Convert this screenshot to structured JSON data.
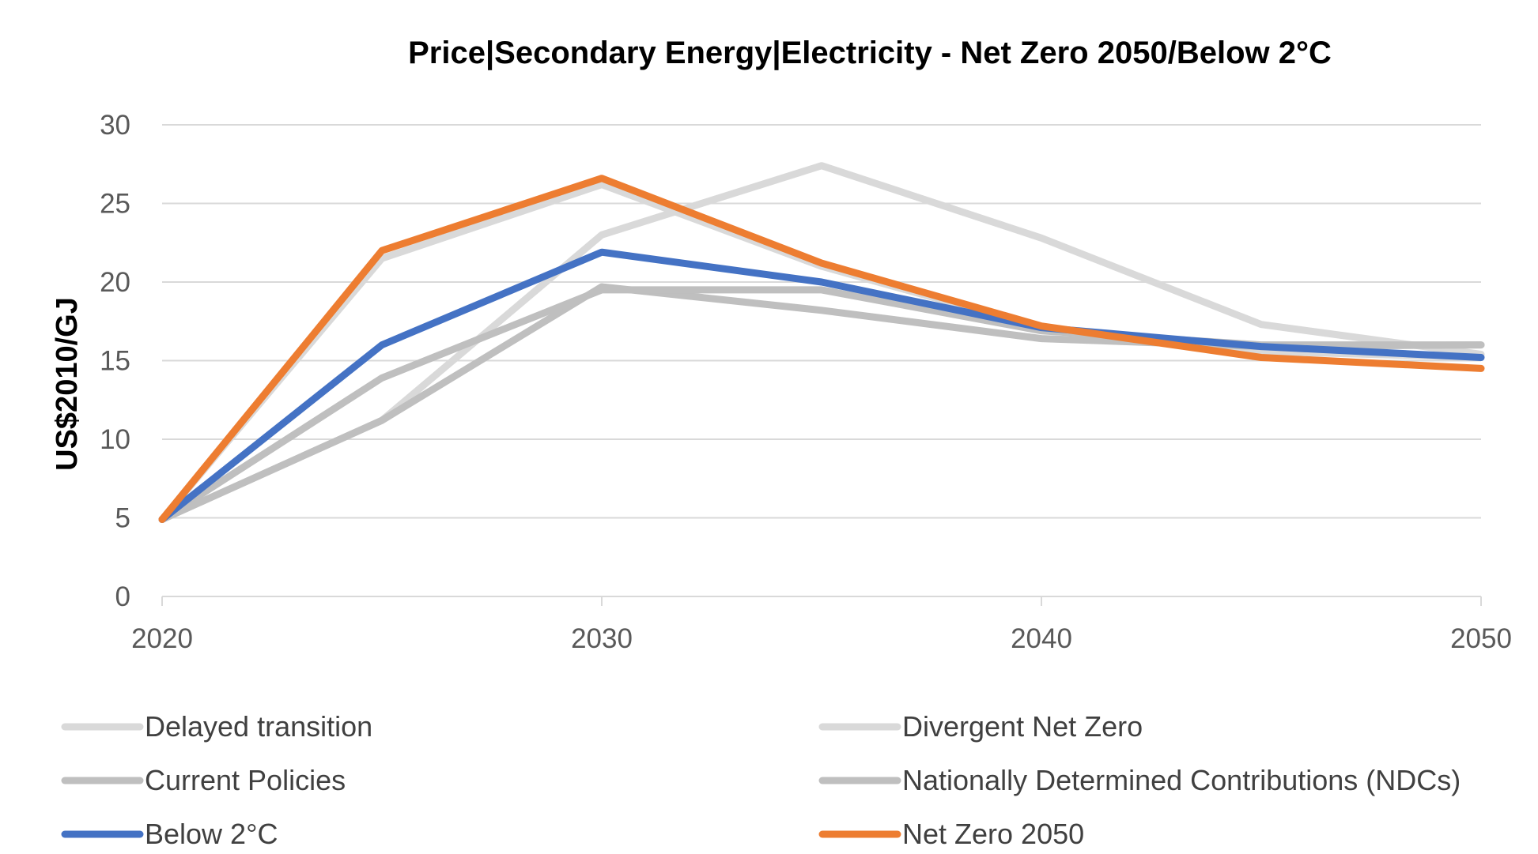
{
  "chart_data": {
    "type": "line",
    "title": "Price|Secondary Energy|Electricity - Net Zero 2050/Below 2°C",
    "xlabel": "",
    "ylabel": "US$2010/GJ",
    "x": [
      2020,
      2025,
      2030,
      2035,
      2040,
      2045,
      2050
    ],
    "x_ticks": [
      "2020",
      "2030",
      "2040",
      "2050"
    ],
    "y_ticks": [
      "0",
      "5",
      "10",
      "15",
      "20",
      "25",
      "30"
    ],
    "xlim": [
      2020,
      2050
    ],
    "ylim": [
      0,
      30
    ],
    "grid": "horizontal",
    "legend_position": "bottom",
    "series": [
      {
        "name": "Delayed transition",
        "color": "#d9d9d9",
        "values": [
          4.9,
          11.2,
          23.0,
          27.4,
          22.8,
          17.3,
          15.4
        ]
      },
      {
        "name": "Divergent Net Zero",
        "color": "#d9d9d9",
        "values": [
          4.9,
          21.5,
          26.2,
          21.0,
          17.1,
          15.6,
          15.2
        ]
      },
      {
        "name": "Current Policies",
        "color": "#bfbfbf",
        "values": [
          4.9,
          11.2,
          19.7,
          18.2,
          16.4,
          15.9,
          16.0
        ]
      },
      {
        "name": "Nationally Determined Contributions (NDCs)",
        "color": "#bfbfbf",
        "values": [
          4.9,
          13.9,
          19.5,
          19.5,
          16.9,
          16.0,
          16.0
        ]
      },
      {
        "name": "Below 2°C",
        "color": "#4472c4",
        "values": [
          4.9,
          16.0,
          21.9,
          20.0,
          17.1,
          15.9,
          15.2
        ]
      },
      {
        "name": "Net Zero 2050",
        "color": "#ed7d31",
        "values": [
          4.9,
          22.0,
          26.6,
          21.2,
          17.2,
          15.2,
          14.5
        ]
      }
    ]
  }
}
